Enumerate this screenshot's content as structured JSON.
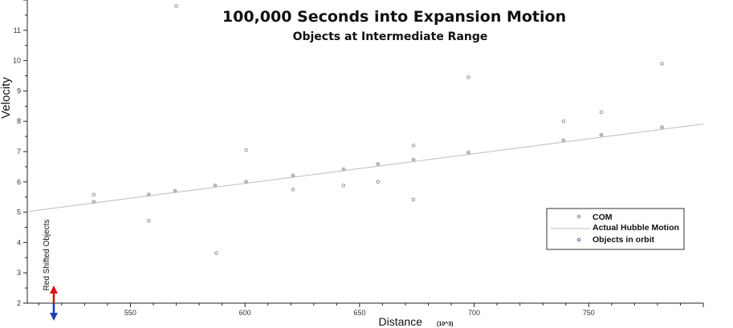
{
  "chart_data": {
    "type": "scatter",
    "title": "100,000 Seconds into Expansion Motion",
    "subtitle": "Objects at Intermediate Range",
    "xlabel": "Distance",
    "xlabel_unit": "(10^3)",
    "ylabel": "Velocity",
    "xlim": [
      505,
      800
    ],
    "ylim": [
      2,
      12
    ],
    "x_ticks": [
      550,
      600,
      650,
      700,
      750
    ],
    "y_ticks": [
      2,
      3,
      4,
      5,
      6,
      7,
      8,
      9,
      10,
      11
    ],
    "grid": false,
    "legend_position": "bottom-right",
    "annotation": "Red Shifted Objects",
    "series": [
      {
        "name": "COM",
        "marker": "filled-circle",
        "color": "#b8b8b8",
        "points": [
          [
            534,
            5.34
          ],
          [
            558,
            5.58
          ],
          [
            569.5,
            5.7
          ],
          [
            587,
            5.88
          ],
          [
            600.5,
            6.0
          ],
          [
            621,
            6.21
          ],
          [
            643,
            6.42
          ],
          [
            658,
            6.59
          ],
          [
            673.5,
            6.73
          ],
          [
            697.5,
            6.97
          ],
          [
            739,
            7.37
          ],
          [
            755.5,
            7.55
          ],
          [
            782,
            7.8
          ]
        ]
      },
      {
        "name": "Actual Hubble Motion",
        "marker": "line",
        "color": "#bdbdbd",
        "points": [
          [
            505,
            5.02
          ],
          [
            800,
            7.91
          ]
        ]
      },
      {
        "name": "Objects in orbit",
        "marker": "open-circle",
        "color": "#8a8a8a",
        "points": [
          [
            534,
            5.58
          ],
          [
            558,
            4.72
          ],
          [
            570,
            11.8
          ],
          [
            587.5,
            3.65
          ],
          [
            600.5,
            7.05
          ],
          [
            621,
            5.75
          ],
          [
            643,
            5.88
          ],
          [
            658,
            6.0
          ],
          [
            673.5,
            7.2
          ],
          [
            673.5,
            5.42
          ],
          [
            697.5,
            9.45
          ],
          [
            739,
            8.0
          ],
          [
            755.5,
            8.3
          ],
          [
            782,
            9.9
          ]
        ]
      }
    ]
  }
}
